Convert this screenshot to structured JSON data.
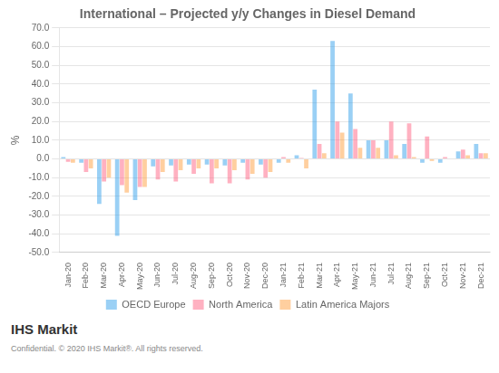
{
  "chart_data": {
    "type": "bar",
    "title": "International – Projected y/y Changes in Diesel Demand",
    "ylabel": "%",
    "categories": [
      "Jan-20",
      "Feb-20",
      "Mar-20",
      "Apr-20",
      "May-20",
      "Jun-20",
      "Jul-20",
      "Aug-20",
      "Sep-20",
      "Oct-20",
      "Nov-20",
      "Dec-20",
      "Jan-21",
      "Feb-21",
      "Mar-21",
      "Apr-21",
      "May-21",
      "Jun-21",
      "Jul-21",
      "Aug-21",
      "Sep-21",
      "Oct-21",
      "Nov-21",
      "Dec-21"
    ],
    "series": [
      {
        "name": "OECD Europe",
        "values": [
          1.0,
          -2.0,
          -24.0,
          -41.0,
          -22.0,
          -4.0,
          -3.5,
          -3.0,
          -3.0,
          -3.5,
          -2.0,
          -3.0,
          -2.0,
          2.0,
          37.0,
          63.0,
          35.0,
          10.0,
          10.0,
          8.0,
          -2.0,
          -2.0,
          4.0,
          8.0
        ]
      },
      {
        "name": "North America",
        "values": [
          -1.5,
          -7.0,
          -12.0,
          -14.0,
          -15.0,
          -11.0,
          -12.0,
          -8.0,
          -13.0,
          -13.0,
          -11.0,
          -10.0,
          1.0,
          0.5,
          8.0,
          20.0,
          16.0,
          10.0,
          20.0,
          19.0,
          12.0,
          1.0,
          5.0,
          3.0
        ]
      },
      {
        "name": "Latin America Majors",
        "values": [
          -2.0,
          -5.0,
          -10.0,
          -18.0,
          -15.0,
          -7.0,
          -6.0,
          -5.0,
          -5.0,
          -6.0,
          -8.0,
          -7.0,
          -2.0,
          -5.0,
          3.0,
          14.0,
          6.0,
          6.0,
          2.0,
          1.0,
          -1.0,
          0.0,
          2.0,
          3.0
        ]
      }
    ],
    "ylim": [
      -50.0,
      70.0
    ],
    "yticks": [
      {
        "value": -50,
        "label": "-50.0"
      },
      {
        "value": -40,
        "label": "-40.0"
      },
      {
        "value": -30,
        "label": "-30.0"
      },
      {
        "value": -20,
        "label": "-20.0"
      },
      {
        "value": -10,
        "label": "-10.0"
      },
      {
        "value": 0,
        "label": "0.0"
      },
      {
        "value": 10,
        "label": "10.0"
      },
      {
        "value": 20,
        "label": "20.0"
      },
      {
        "value": 30,
        "label": "30.0"
      },
      {
        "value": 40,
        "label": "40.0"
      },
      {
        "value": 50,
        "label": "50.0"
      },
      {
        "value": 60,
        "label": "60.0"
      },
      {
        "value": 70,
        "label": "70.0"
      }
    ],
    "grid": true,
    "legend": "bottom",
    "annotations": [
      "IHS Markit",
      "Confidential. © 2020 IHS Markit®. All rights reserved."
    ]
  }
}
